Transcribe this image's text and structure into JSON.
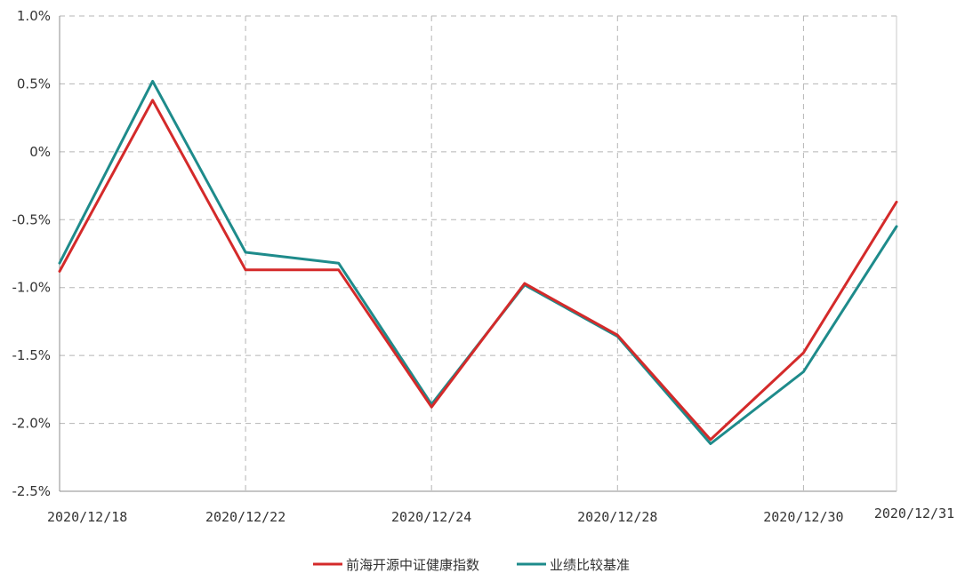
{
  "chart_data": {
    "type": "line",
    "title": "",
    "xlabel": "",
    "ylabel": "",
    "x": [
      "2020/12/18",
      "",
      "2020/12/22",
      "",
      "2020/12/24",
      "",
      "2020/12/28",
      "",
      "2020/12/30",
      "2020/12/31"
    ],
    "x_tick_labels": [
      "2020/12/18",
      "2020/12/22",
      "2020/12/24",
      "2020/12/28",
      "2020/12/30",
      "2020/12/31"
    ],
    "y_tick_labels": [
      "1.0%",
      "0.5%",
      "0%",
      "-0.5%",
      "-1.0%",
      "-1.5%",
      "-2.0%",
      "-2.5%"
    ],
    "y_ticks": [
      1.0,
      0.5,
      0,
      -0.5,
      -1.0,
      -1.5,
      -2.0,
      -2.5
    ],
    "ylim": [
      -2.5,
      1.0
    ],
    "y_unit": "%",
    "grid": true,
    "legend_position": "bottom-center",
    "series": [
      {
        "name": "前海开源中证健康指数",
        "color": "#d42a2a",
        "values": [
          -0.88,
          0.38,
          -0.87,
          -0.87,
          -1.88,
          -0.97,
          -1.35,
          -2.12,
          -1.48,
          -0.37
        ]
      },
      {
        "name": "业绩比较基准",
        "color": "#1e8b8b",
        "values": [
          -0.82,
          0.52,
          -0.74,
          -0.82,
          -1.86,
          -0.98,
          -1.36,
          -2.15,
          -1.62,
          -0.55
        ]
      }
    ]
  }
}
